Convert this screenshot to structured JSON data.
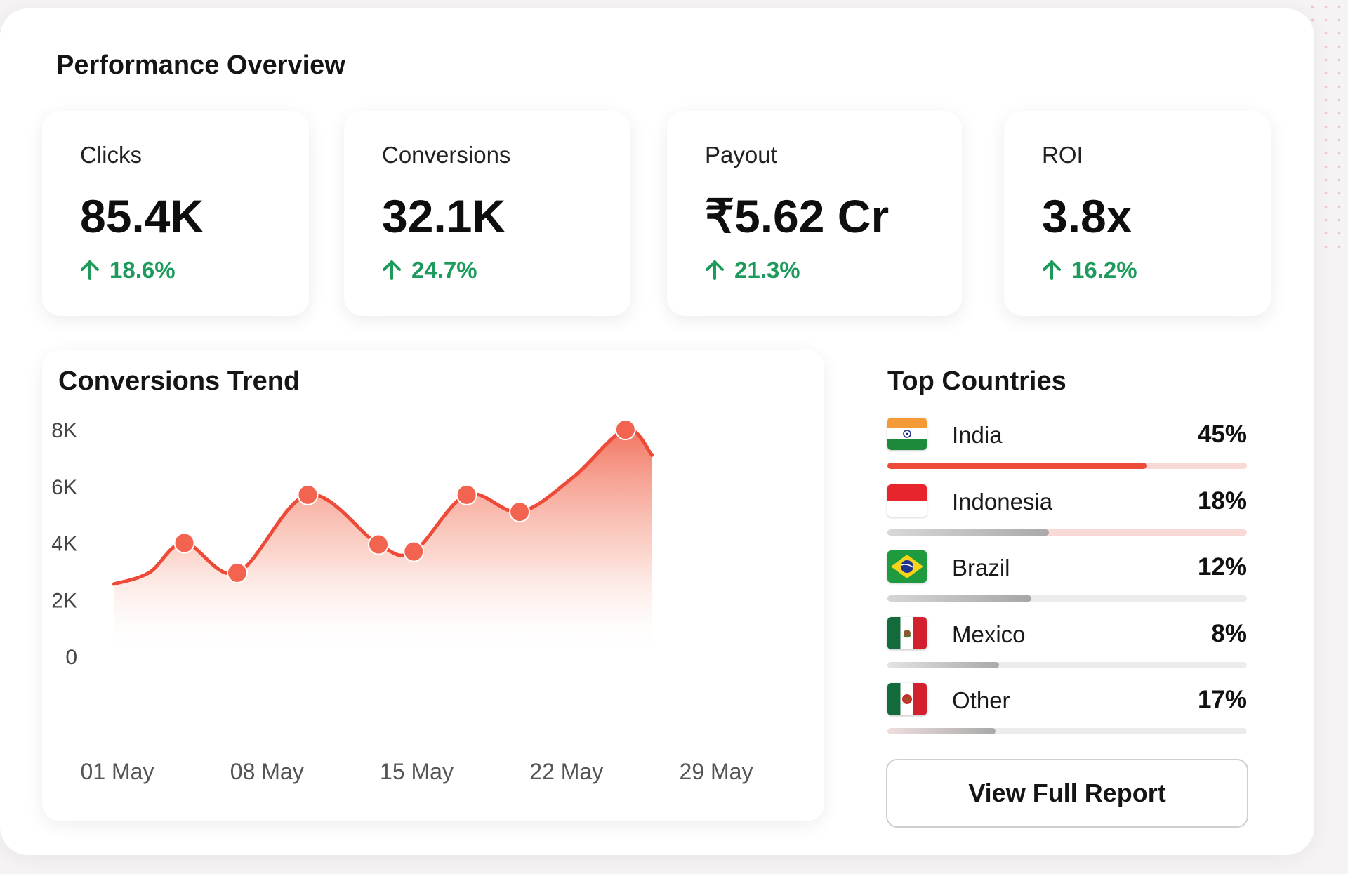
{
  "header": {
    "title": "Performance Overview"
  },
  "kpis": [
    {
      "label": "Clicks",
      "value": "85.4K",
      "delta": "18.6%"
    },
    {
      "label": "Conversions",
      "value": "32.1K",
      "delta": "24.7%"
    },
    {
      "label": "Payout",
      "value": "₹5.62 Cr",
      "delta": "21.3%"
    },
    {
      "label": "ROI",
      "value": "3.8x",
      "delta": "16.2%"
    }
  ],
  "colors": {
    "accent": "#ee4a38",
    "positive": "#1e9a5c",
    "track": "#ececec",
    "track_accent": "#f8d9d6"
  },
  "chart_data": {
    "type": "area",
    "title": "Conversions Trend",
    "x_tick_labels": [
      "01 May",
      "08 May",
      "15 May",
      "22 May",
      "29 May"
    ],
    "y_tick_labels": [
      "0",
      "2K",
      "4K",
      "6K",
      "8K"
    ],
    "ylim": [
      0,
      8000
    ],
    "xlim": [
      1,
      31
    ],
    "grid": false,
    "series": [
      {
        "x": [
          1,
          3,
          5,
          8,
          12,
          16,
          18,
          21,
          24,
          27,
          30,
          31.5
        ],
        "y": [
          2550,
          2950,
          4000,
          2950,
          5700,
          3950,
          3700,
          5700,
          5100,
          6300,
          8000,
          7100
        ],
        "markers": [
          5,
          8,
          12,
          16,
          18,
          21,
          24,
          30
        ]
      }
    ]
  },
  "countries": {
    "title": "Top Countries",
    "items": [
      {
        "name": "India",
        "pct_label": "45%",
        "fill": 0.72,
        "flag": "india-flag"
      },
      {
        "name": "Indonesia",
        "pct_label": "18%",
        "fill": 0.45,
        "flag": "indonesia-flag"
      },
      {
        "name": "Brazil",
        "pct_label": "12%",
        "fill": 0.4,
        "flag": "brazil-flag"
      },
      {
        "name": "Mexico",
        "pct_label": "8%",
        "fill": 0.31,
        "flag": "mexico-flag"
      },
      {
        "name": "Other",
        "pct_label": "17%",
        "fill": 0.3,
        "flag": "mexico-flag"
      }
    ],
    "button_label": "View Full Report"
  }
}
